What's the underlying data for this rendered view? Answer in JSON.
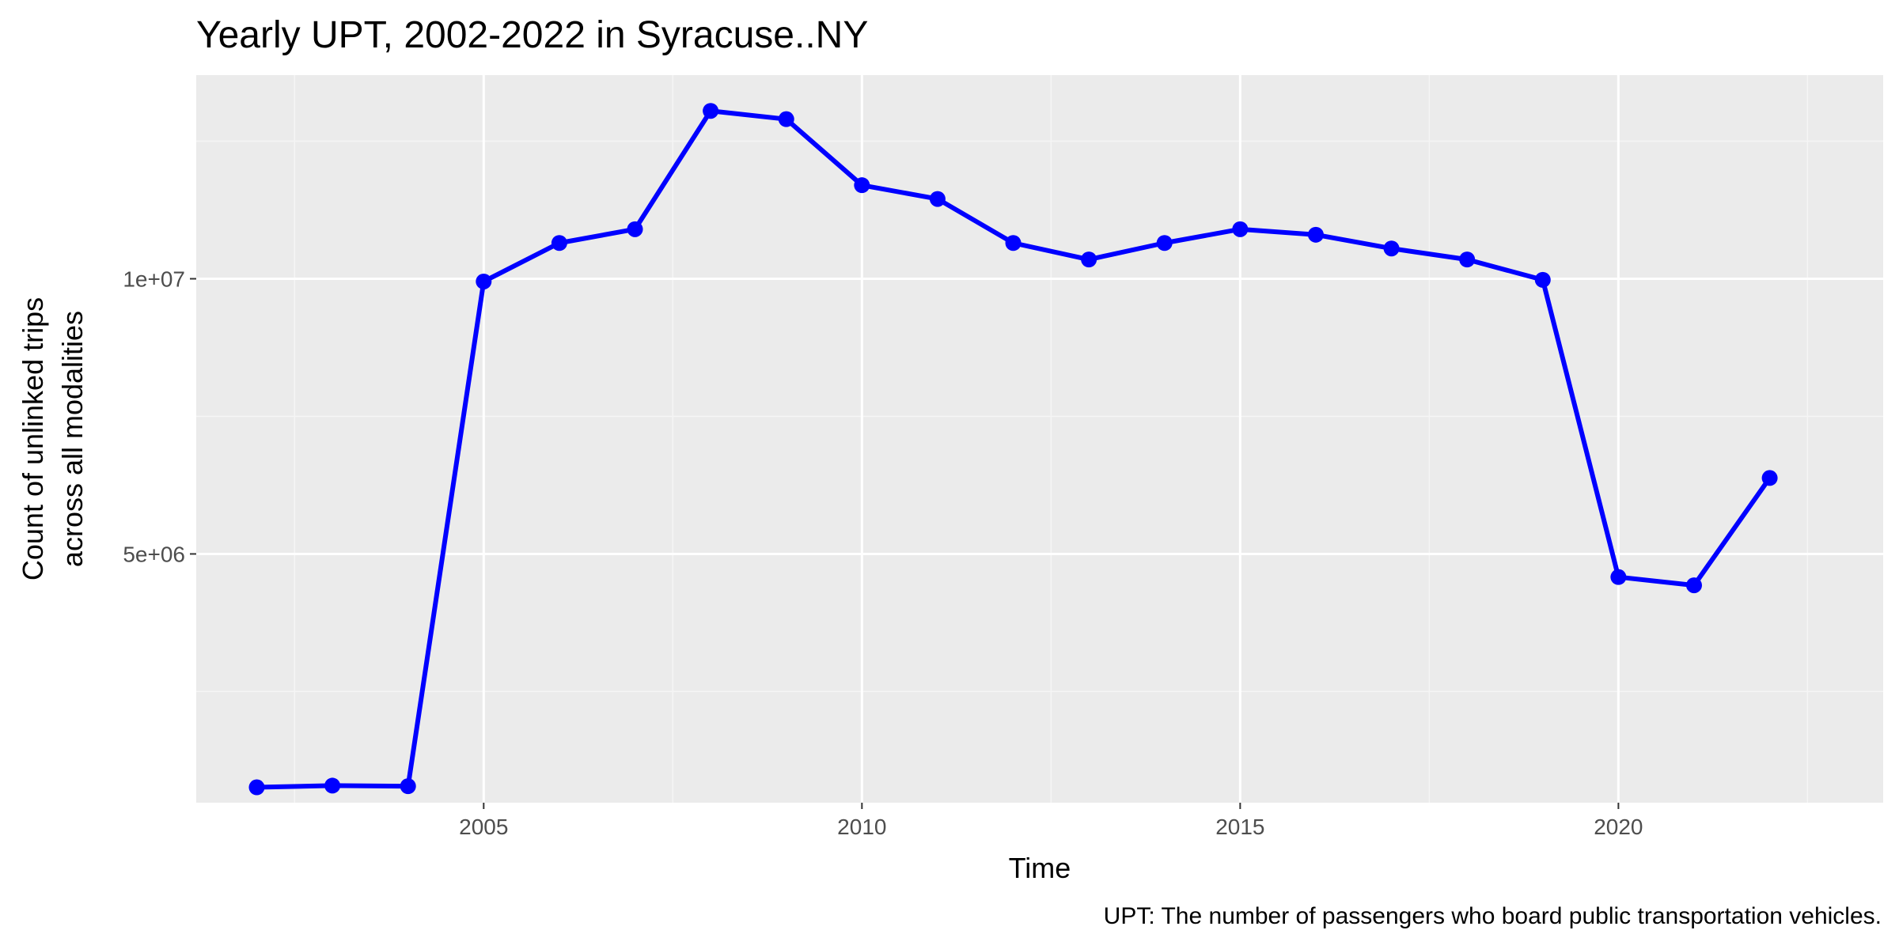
{
  "chart_data": {
    "type": "line",
    "title": "Yearly UPT, 2002-2022 in Syracuse..NY",
    "xlabel": "Time",
    "ylabel_lines": [
      "Count of unlinked trips",
      "across all modalities"
    ],
    "caption": "UPT: The number of passengers who board public transportation vehicles.",
    "xlim": [
      2001.2,
      2023.5
    ],
    "ylim": [
      480000,
      13700000
    ],
    "x_ticks": [
      2005,
      2010,
      2015,
      2020
    ],
    "x_tick_labels": [
      "2005",
      "2010",
      "2015",
      "2020"
    ],
    "y_ticks": [
      5000000,
      10000000
    ],
    "y_tick_labels": [
      "5e+06",
      "1e+07"
    ],
    "x_minor_ticks": [
      2002.5,
      2007.5,
      2012.5,
      2017.5,
      2022.5
    ],
    "y_minor_ticks": [
      2500000,
      7500000,
      12500000
    ],
    "grid": true,
    "series": [
      {
        "color": "#0000ff",
        "x": [
          2002,
          2003,
          2004,
          2005,
          2006,
          2007,
          2008,
          2009,
          2010,
          2011,
          2012,
          2013,
          2014,
          2015,
          2016,
          2017,
          2018,
          2019,
          2020,
          2021,
          2022
        ],
        "values": [
          760000,
          790000,
          780000,
          9950000,
          10650000,
          10900000,
          13050000,
          12900000,
          11700000,
          11450000,
          10650000,
          10350000,
          10650000,
          10900000,
          10800000,
          10550000,
          10350000,
          9980000,
          4580000,
          4430000,
          6380000
        ]
      }
    ]
  },
  "colors": {
    "panel_background": "#ebebeb",
    "grid_major": "#ffffff",
    "grid_minor": "#f5f5f5",
    "series": "#0000ff"
  }
}
